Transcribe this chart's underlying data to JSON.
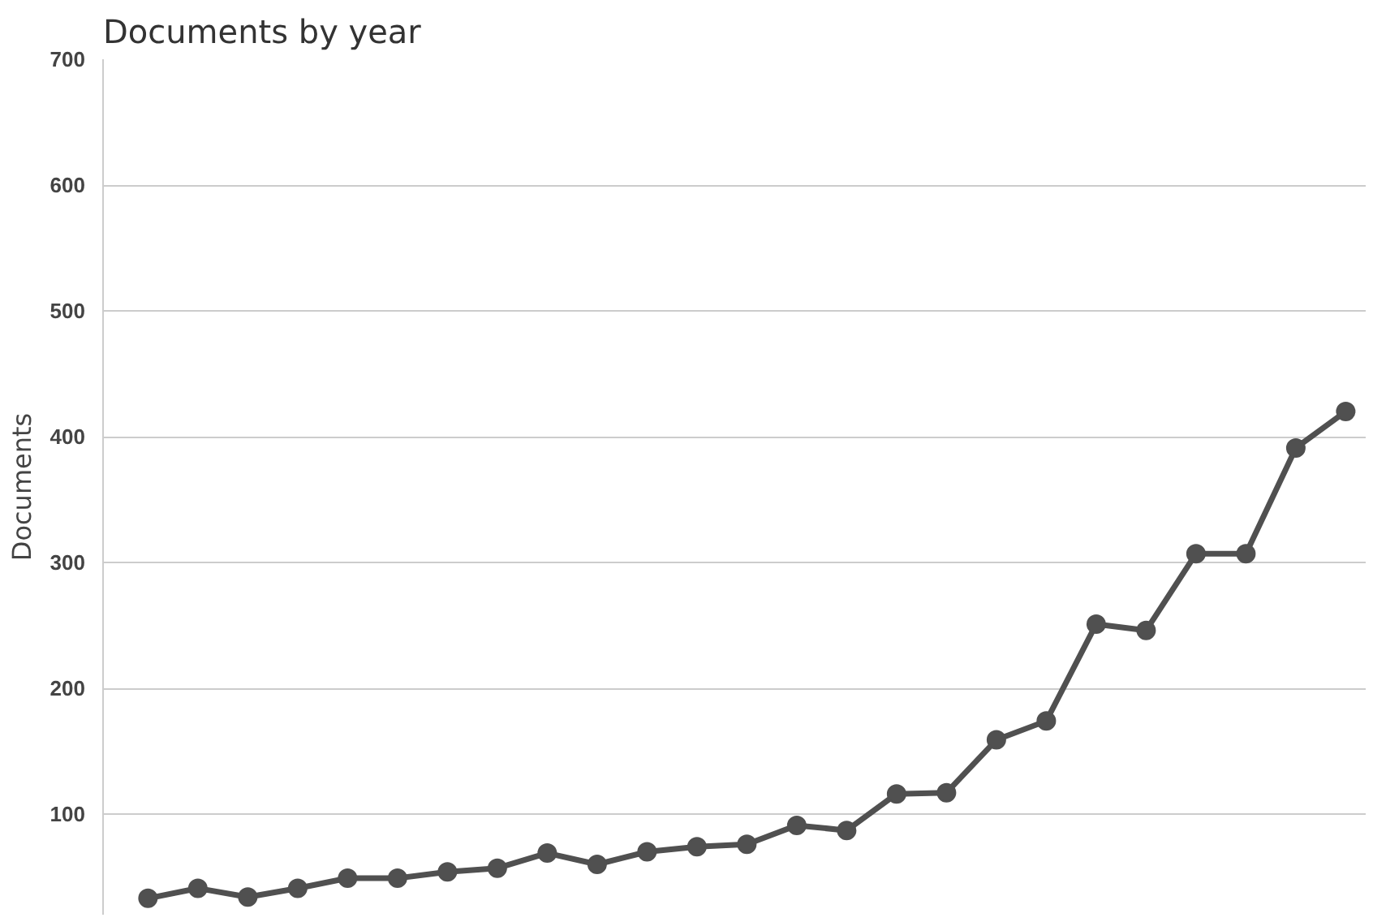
{
  "chart_data": {
    "type": "line",
    "title": "Documents by year",
    "ylabel": "Documents",
    "categories": [
      null,
      null,
      null,
      null,
      null,
      null,
      null,
      null,
      null,
      null,
      null,
      null,
      null,
      null,
      null,
      null,
      null,
      null,
      null,
      null,
      null,
      null,
      null,
      null,
      null
    ],
    "series": [
      {
        "color": "#505050",
        "values": [
          33,
          41,
          34,
          41,
          49,
          49,
          54,
          57,
          69,
          60,
          70,
          74,
          76,
          91,
          87,
          116,
          117,
          159,
          174,
          251,
          246,
          307,
          307,
          391,
          420
        ]
      }
    ],
    "ylim": [
      20,
      700
    ],
    "yticks": [
      100,
      200,
      300,
      400,
      500,
      600,
      700
    ],
    "grid": "y",
    "marker": "circle",
    "line_style": "solid"
  }
}
